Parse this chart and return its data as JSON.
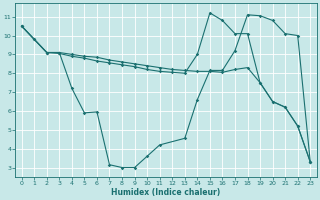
{
  "xlabel": "Humidex (Indice chaleur)",
  "bg_color": "#c8e8e8",
  "line_color": "#1a7070",
  "grid_color": "#ffffff",
  "xlim": [
    -0.5,
    23.5
  ],
  "ylim": [
    2.5,
    11.7
  ],
  "xticks": [
    0,
    1,
    2,
    3,
    4,
    5,
    6,
    7,
    8,
    9,
    10,
    11,
    12,
    13,
    14,
    15,
    16,
    17,
    18,
    19,
    20,
    21,
    22,
    23
  ],
  "yticks": [
    3,
    4,
    5,
    6,
    7,
    8,
    9,
    10,
    11
  ],
  "line1_x": [
    0,
    1,
    2,
    3,
    4,
    5,
    6,
    7,
    8,
    9,
    10,
    11,
    12,
    13,
    14,
    15,
    16,
    17,
    18,
    19,
    20,
    21,
    22,
    23
  ],
  "line1_y": [
    10.5,
    9.8,
    9.1,
    9.1,
    9.0,
    8.9,
    8.85,
    8.7,
    8.6,
    8.5,
    8.4,
    8.3,
    8.2,
    8.15,
    8.1,
    8.1,
    8.05,
    8.2,
    8.3,
    7.5,
    6.5,
    6.2,
    5.2,
    3.3
  ],
  "line2_x": [
    0,
    1,
    2,
    3,
    4,
    5,
    6,
    7,
    8,
    9,
    10,
    11,
    12,
    13,
    14,
    15,
    16,
    17,
    18,
    19,
    20,
    21,
    22,
    23
  ],
  "line2_y": [
    10.5,
    9.8,
    9.1,
    9.05,
    8.9,
    8.8,
    8.65,
    8.55,
    8.45,
    8.35,
    8.2,
    8.1,
    8.05,
    8.0,
    9.0,
    11.2,
    10.8,
    10.1,
    10.1,
    7.5,
    6.5,
    6.2,
    5.2,
    3.3
  ],
  "line3_x": [
    0,
    2,
    3,
    4,
    5,
    6,
    7,
    8,
    9,
    10,
    11,
    13,
    14,
    15,
    16,
    17,
    18,
    19,
    20,
    21,
    22,
    23
  ],
  "line3_y": [
    10.5,
    9.1,
    9.1,
    7.2,
    5.9,
    5.95,
    3.15,
    3.0,
    3.0,
    3.6,
    4.2,
    4.55,
    6.6,
    8.15,
    8.15,
    9.2,
    11.1,
    11.05,
    10.8,
    10.1,
    10.0,
    3.3
  ]
}
